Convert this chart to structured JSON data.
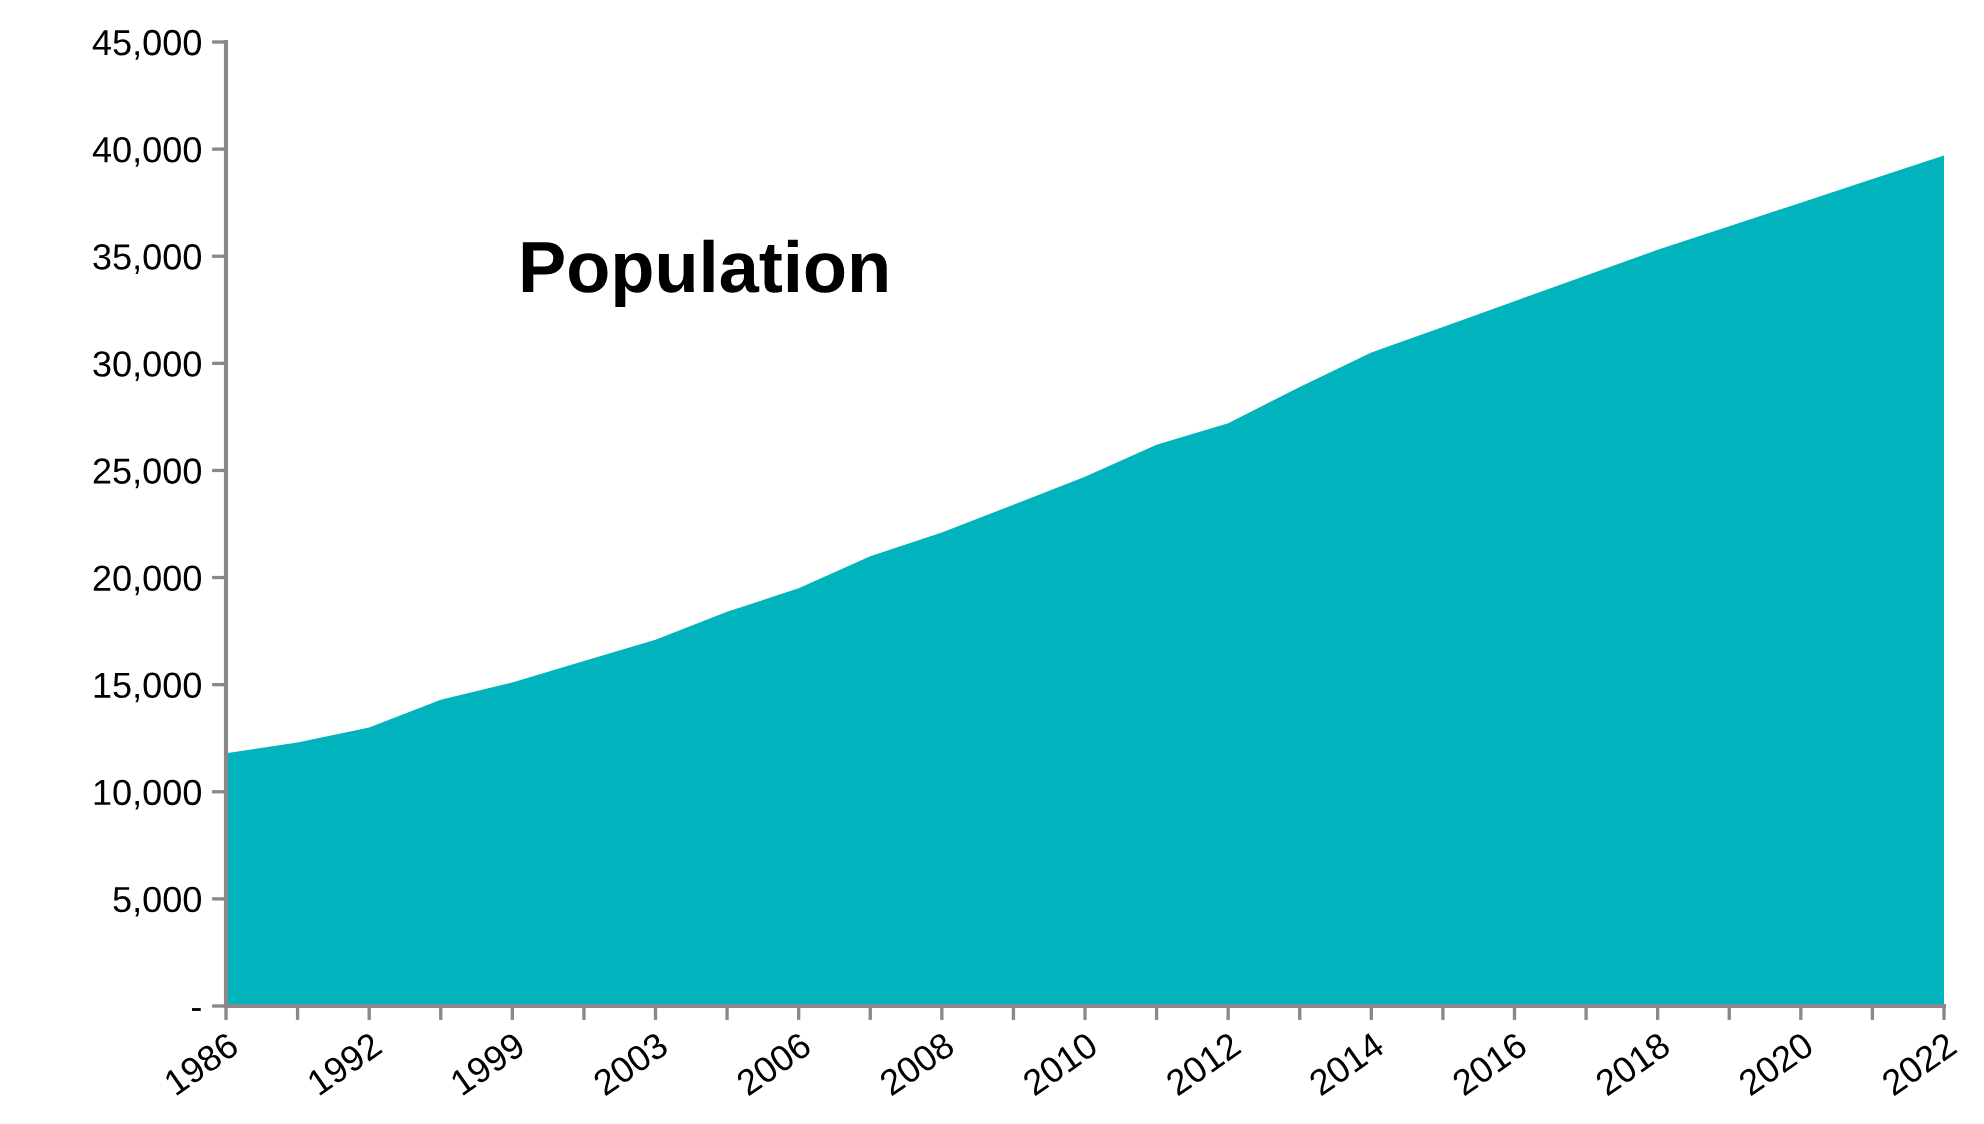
{
  "chart_data": {
    "type": "area",
    "title": "Population",
    "categories": [
      "1986",
      null,
      "1992",
      null,
      "1999",
      null,
      "2003",
      null,
      "2006",
      null,
      "2008",
      null,
      "2010",
      null,
      "2012",
      null,
      "2014",
      null,
      "2016",
      null,
      "2018",
      null,
      "2020",
      null,
      "2022"
    ],
    "series": [
      {
        "color": "#00b3bd",
        "values": [
          11800,
          12300,
          13000,
          14300,
          15100,
          16100,
          17100,
          18400,
          19500,
          21000,
          22100,
          23400,
          24700,
          26200,
          27200,
          28900,
          30500,
          31700,
          32900,
          34100,
          35300,
          36400,
          37500,
          38600,
          39700
        ]
      }
    ],
    "ylim": [
      0,
      45000
    ],
    "yticks": [
      {
        "value": 0,
        "label": "-"
      },
      {
        "value": 5000,
        "label": "5,000"
      },
      {
        "value": 10000,
        "label": "10,000"
      },
      {
        "value": 15000,
        "label": "15,000"
      },
      {
        "value": 20000,
        "label": "20,000"
      },
      {
        "value": 25000,
        "label": "25,000"
      },
      {
        "value": 30000,
        "label": "30,000"
      },
      {
        "value": 35000,
        "label": "35,000"
      },
      {
        "value": 40000,
        "label": "40,000"
      },
      {
        "value": 45000,
        "label": "45,000"
      }
    ],
    "grid": false,
    "legend": false
  }
}
